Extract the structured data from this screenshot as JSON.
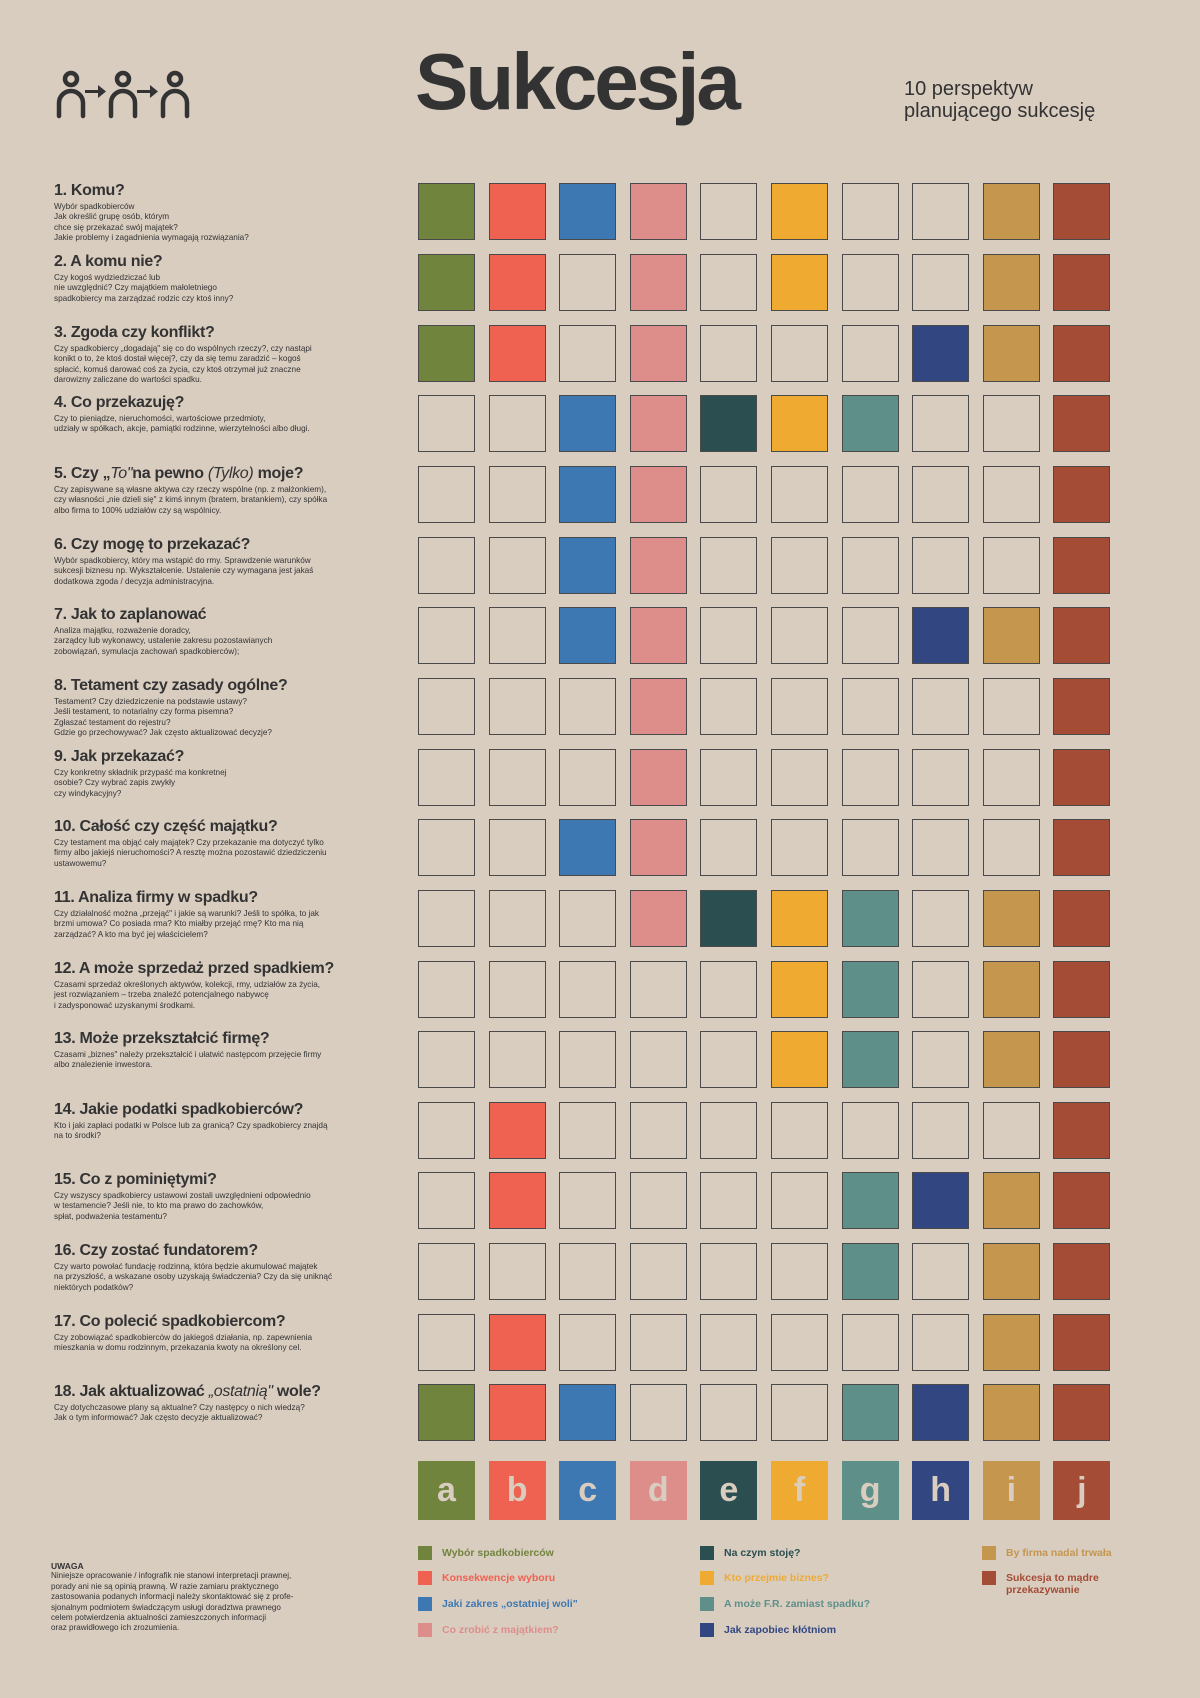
{
  "header": {
    "title": "Sukcesja",
    "subtitle_lines": [
      "10 perspektyw",
      "planującego sukcesję"
    ],
    "logo": "person-arrow-person-arrow-person-icon"
  },
  "colors": {
    "background": "#d9cdc0",
    "a": "#71843e",
    "b": "#ef6150",
    "c": "#3e78b2",
    "d": "#de8e8a",
    "e": "#2b4f50",
    "f": "#efaa32",
    "g": "#5e8f88",
    "h": "#324682",
    "i": "#c4964e",
    "j": "#a44c35"
  },
  "columns": [
    "a",
    "b",
    "c",
    "d",
    "e",
    "f",
    "g",
    "h",
    "i",
    "j"
  ],
  "questions": [
    {
      "title": "1. Komu?",
      "desc": [
        "Wybór spadkobierców",
        "Jak określić grupę osób, którym",
        "chce się przekazać swój majątek?",
        "Jakie problemy i zagadnienia wymagają rozwiązania?"
      ],
      "filled": [
        "a",
        "b",
        "c",
        "d",
        "f",
        "i",
        "j"
      ]
    },
    {
      "title": "2. A komu nie?",
      "desc": [
        "Czy kogoś wydziedziczać lub",
        "nie uwzględnić? Czy majątkiem małoletniego",
        "spadkobiercy  ma zarządzać rodzic czy ktoś inny?"
      ],
      "filled": [
        "a",
        "b",
        "d",
        "f",
        "i",
        "j"
      ]
    },
    {
      "title": "3. Zgoda czy konflikt?",
      "desc": [
        "Czy spadkobiercy „dogadają\" się co do wspólnych rzeczy?, czy nastąpi",
        "konikt o to, że ktoś dostał więcej?, czy da się temu zaradzić – kogoś",
        "spłacić, komuś darować coś za życia, czy ktoś otrzymał już znaczne",
        "darowizny zaliczane do wartości spadku."
      ],
      "filled": [
        "a",
        "b",
        "d",
        "h",
        "i",
        "j"
      ]
    },
    {
      "title": "4. Co przekazuję?",
      "desc": [
        "Czy to pieniądze, nieruchomości, wartościowe przedmioty,",
        "udziały w spółkach, akcje, pamiątki rodzinne, wierzytelności albo długi."
      ],
      "filled": [
        "c",
        "d",
        "e",
        "f",
        "g",
        "j"
      ]
    },
    {
      "title_parts": [
        "5. Czy „",
        "To\"",
        "na pewno ",
        "(Tylko)",
        " moje?"
      ],
      "desc": [
        "Czy zapisywane są własne aktywa czy rzeczy wspólne (np. z małżonkiem),",
        "czy własności „nie dzieli się\" z kimś innym (bratem, bratankiem), czy spółka",
        "albo firma to 100% udziałów czy są wspólnicy."
      ],
      "filled": [
        "c",
        "d",
        "j"
      ]
    },
    {
      "title": "6. Czy mogę to przekazać?",
      "desc": [
        "Wybór spadkobiercy, który ma wstąpić do rmy. Sprawdzenie warunków",
        "sukcesji biznesu np. Wykształcenie. Ustalenie czy wymagana jest jakaś",
        "dodatkowa zgoda / decyzja administracyjna."
      ],
      "filled": [
        "c",
        "d",
        "j"
      ]
    },
    {
      "title": "7. Jak to zaplanować",
      "desc": [
        "Analiza majątku, rozważenie doradcy,",
        "zarządcy lub wykonawcy, ustalenie zakresu pozostawianych",
        "zobowiązań, symulacja zachowań spadkobierców);"
      ],
      "filled": [
        "c",
        "d",
        "h",
        "i",
        "j"
      ]
    },
    {
      "title": "8. Tetament czy zasady ogólne?",
      "desc": [
        "Testament? Czy dziedziczenie na podstawie ustawy?",
        "Jeśli testament, to notarialny czy forma pisemna?",
        "Zgłaszać testament do rejestru?",
        "Gdzie go przechowywać? Jak często aktualizować decyzje?"
      ],
      "filled": [
        "d",
        "j"
      ]
    },
    {
      "title": "9. Jak przekazać?",
      "desc": [
        "Czy konkretny składnik przypaść ma konkretnej",
        "osobie? Czy wybrać zapis zwykły",
        "czy windykacyjny?"
      ],
      "filled": [
        "d",
        "j"
      ]
    },
    {
      "title": "10. Całość czy część majątku?",
      "desc": [
        "Czy testament ma objąć cały majątek? Czy przekazanie ma dotyczyć tylko",
        "firmy albo jakiejś nieruchomości? A resztę można pozostawić dziedziczeniu",
        "ustawowemu?"
      ],
      "filled": [
        "c",
        "d",
        "j"
      ]
    },
    {
      "title": "11. Analiza firmy w spadku?",
      "desc": [
        "Czy działalność można „przejąć\" i jakie są warunki? Jeśli to spółka, to jak",
        "brzmi umowa? Co posiada rma? Kto miałby przejąć rmę? Kto ma nią",
        "zarządzać? A kto ma być jej właścicielem?"
      ],
      "filled": [
        "d",
        "e",
        "f",
        "g",
        "i",
        "j"
      ]
    },
    {
      "title": "12. A może sprzedaż przed spadkiem?",
      "desc": [
        "Czasami sprzedaż określonych aktywów, kolekcji, rmy, udziałów za życia,",
        "jest rozwiązaniem – trzeba znaleźć potencjalnego nabywcę",
        "i zadysponować uzyskanymi środkami."
      ],
      "filled": [
        "f",
        "g",
        "i",
        "j"
      ]
    },
    {
      "title": "13. Może przekształcić firmę?",
      "desc": [
        "Czasami „biznes\" należy przekształcić i ułatwić następcom przejęcie firmy",
        "albo znalezienie inwestora."
      ],
      "filled": [
        "f",
        "g",
        "i",
        "j"
      ]
    },
    {
      "title": "14. Jakie podatki spadkobierców?",
      "desc": [
        "Kto i jaki zapłaci podatki w Polsce lub za granicą? Czy spadkobiercy znajdą",
        "na to środki?"
      ],
      "filled": [
        "b",
        "j"
      ]
    },
    {
      "title": "15. Co z pominiętymi?",
      "desc": [
        "Czy wszyscy spadkobiercy ustawowi zostali uwzględnieni odpowiednio",
        "w testamencie? Jeśli nie, to kto ma prawo do zachowków,",
        "spłat, podważenia testamentu?"
      ],
      "filled": [
        "b",
        "g",
        "h",
        "i",
        "j"
      ]
    },
    {
      "title": "16. Czy zostać fundatorem?",
      "desc": [
        "Czy warto powołać fundację rodzinną, która będzie akumulować majątek",
        "na przyszłość, a wskazane osoby uzyskają świadczenia? Czy da się uniknąć",
        "niektórych podatków?"
      ],
      "filled": [
        "g",
        "i",
        "j"
      ]
    },
    {
      "title": "17. Co polecić spadkobiercom?",
      "desc": [
        "Czy zobowiązać spadkobierców do jakiegoś działania, np. zapewnienia",
        "mieszkania w domu rodzinnym, przekazania kwoty na określony cel."
      ],
      "filled": [
        "b",
        "i",
        "j"
      ]
    },
    {
      "title_parts": [
        "18. Jak aktualizować ",
        "„ostatnią\"",
        " wole?"
      ],
      "desc": [
        "Czy dotychczasowe plany są aktualne? Czy następcy o nich wiedzą?",
        "Jak o tym informować? Jak często decyzje aktualizować?"
      ],
      "filled": [
        "a",
        "b",
        "c",
        "g",
        "h",
        "i",
        "j"
      ]
    }
  ],
  "legend": [
    {
      "key": "a",
      "label": "Wybór spadkobierców"
    },
    {
      "key": "b",
      "label": "Konsekwencje wyboru"
    },
    {
      "key": "c",
      "label": "Jaki zakres „ostatniej woli\""
    },
    {
      "key": "d",
      "label": "Co zrobić z majątkiem?"
    },
    {
      "key": "e",
      "label": "Na czym stoję?"
    },
    {
      "key": "f",
      "label": "Kto przejmie biznes?"
    },
    {
      "key": "g",
      "label": "A może F.R. zamiast spadku?"
    },
    {
      "key": "h",
      "label": "Jak zapobiec kłótniom"
    },
    {
      "key": "i",
      "label": "By firma nadal trwała"
    },
    {
      "key": "j",
      "label": "Sukcesja to mądre przekazywanie"
    }
  ],
  "note": {
    "title": "UWAGA",
    "lines": [
      "Niniejsze opracowanie / infografik nie stanowi interpretacji prawnej,",
      "porady ani nie są opinią prawną. W razie zamiaru praktycznego",
      "zastosowania podanych informacji należy skontaktować się z profe-",
      "sjonalnym podmiotem świadczącym usługi doradztwa prawnego",
      "celem potwierdzenia aktualności zamieszczonych informacji",
      "oraz prawidłowego ich zrozumienia."
    ]
  }
}
